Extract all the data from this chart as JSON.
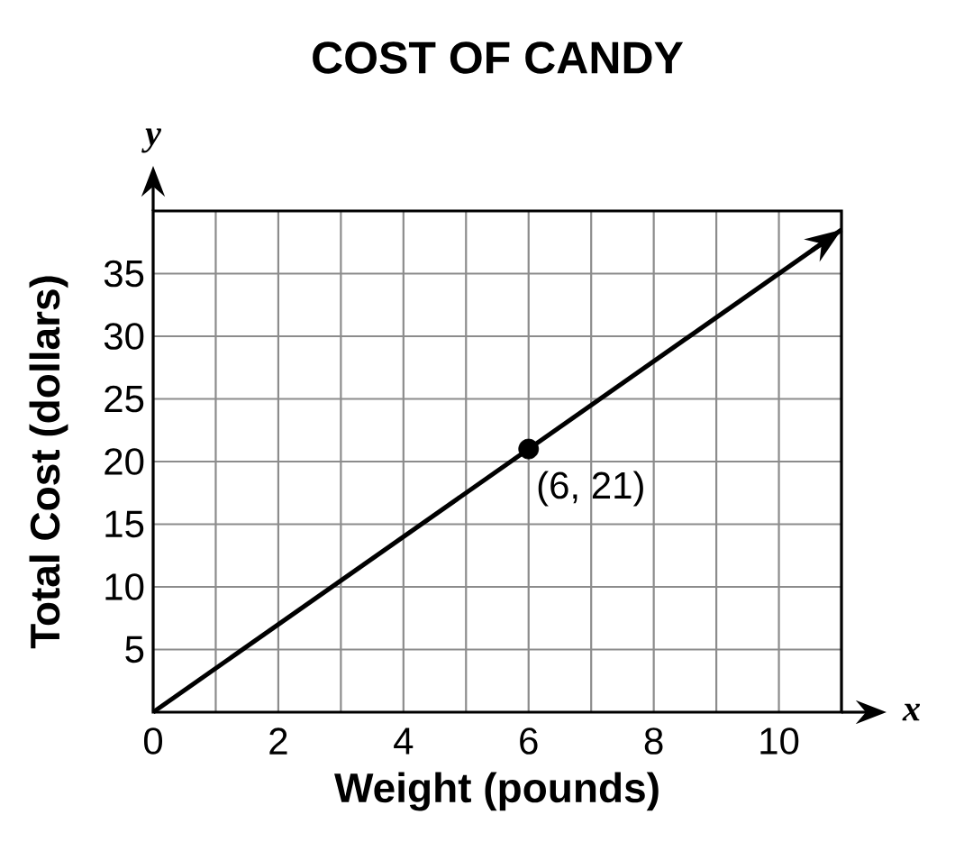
{
  "chart_data": {
    "type": "line",
    "title": "COST OF CANDY",
    "xlabel": "Weight (pounds)",
    "ylabel": "Total Cost (dollars)",
    "annotations": [
      "x",
      "y",
      {
        "text": "(6, 21)",
        "x": 6,
        "y": 21
      }
    ],
    "xlim": [
      0,
      11
    ],
    "ylim": [
      0,
      40
    ],
    "xticks": [
      0,
      {
        "value": 1,
        "label": null
      },
      2,
      {
        "value": 3,
        "label": null
      },
      4,
      {
        "value": 5,
        "label": null
      },
      6,
      {
        "value": 7,
        "label": null
      },
      8,
      {
        "value": 9,
        "label": null
      },
      10,
      {
        "value": 11,
        "label": null
      }
    ],
    "yticks": [
      {
        "value": 0,
        "label": null
      },
      5,
      10,
      15,
      20,
      25,
      30,
      35,
      {
        "value": 40,
        "label": null
      }
    ],
    "grid": true,
    "series": [
      {
        "color": "#000000",
        "marker": "none",
        "x": [
          0,
          11
        ],
        "values": [
          0,
          38.5
        ]
      },
      {
        "type": "scatter",
        "color": "#000000",
        "marker": "circle",
        "x": [
          6
        ],
        "values": [
          21
        ]
      }
    ]
  }
}
